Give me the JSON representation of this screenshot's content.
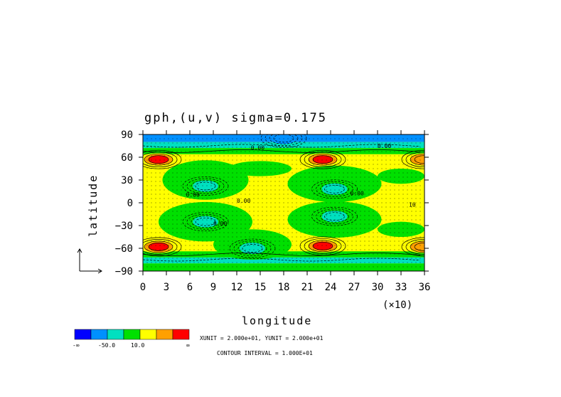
{
  "chart_data": {
    "type": "heatmap",
    "title": "gph,(u,v) sigma=0.175",
    "xlabel": "longitude",
    "ylabel": "latitude",
    "x_multiplier_label": "(×10)",
    "xlim": [
      0,
      36
    ],
    "ylim": [
      -90,
      90
    ],
    "x_ticks": [
      "0",
      "3",
      "6",
      "9",
      "12",
      "15",
      "18",
      "21",
      "24",
      "27",
      "30",
      "33",
      "36"
    ],
    "y_ticks": [
      "90",
      "60",
      "30",
      "0",
      "-30",
      "-60",
      "-90"
    ],
    "colors": [
      "#0000ff",
      "#0090ff",
      "#00e0c0",
      "#00e000",
      "#ffff00",
      "#ffa000",
      "#ff0000"
    ],
    "colorbar_labels": [
      "-∞",
      "-50.0",
      "10.0",
      "∞"
    ],
    "unit_text": "XUNIT = 2.000e+01, YUNIT = 2.000e+01",
    "contour_interval_text": "CONTOUR INTERVAL = 1.000E+01",
    "contour_labels": [
      "0.00",
      "0.00",
      "0.00",
      "0.00",
      "0.00",
      "0.00",
      "10"
    ],
    "features": [
      {
        "kind": "high",
        "lon_deg": 20,
        "lat": 57,
        "level": 6
      },
      {
        "kind": "high",
        "lon_deg": 230,
        "lat": 57,
        "level": 6
      },
      {
        "kind": "high",
        "lon_deg": 360,
        "lat": 57,
        "level": 5
      },
      {
        "kind": "high",
        "lon_deg": 20,
        "lat": -58,
        "level": 6
      },
      {
        "kind": "high",
        "lon_deg": 230,
        "lat": -57,
        "level": 6
      },
      {
        "kind": "high",
        "lon_deg": 360,
        "lat": -58,
        "level": 5
      },
      {
        "kind": "low",
        "lon_deg": 80,
        "lat": 22,
        "level": 2
      },
      {
        "kind": "low",
        "lon_deg": 245,
        "lat": 18,
        "level": 2
      },
      {
        "kind": "low",
        "lon_deg": 80,
        "lat": -25,
        "level": 2
      },
      {
        "kind": "low",
        "lon_deg": 245,
        "lat": -18,
        "level": 2
      },
      {
        "kind": "low",
        "lon_deg": 140,
        "lat": -60,
        "level": 2
      },
      {
        "kind": "low",
        "lon_deg": 180,
        "lat": 85,
        "level": 1
      }
    ]
  }
}
